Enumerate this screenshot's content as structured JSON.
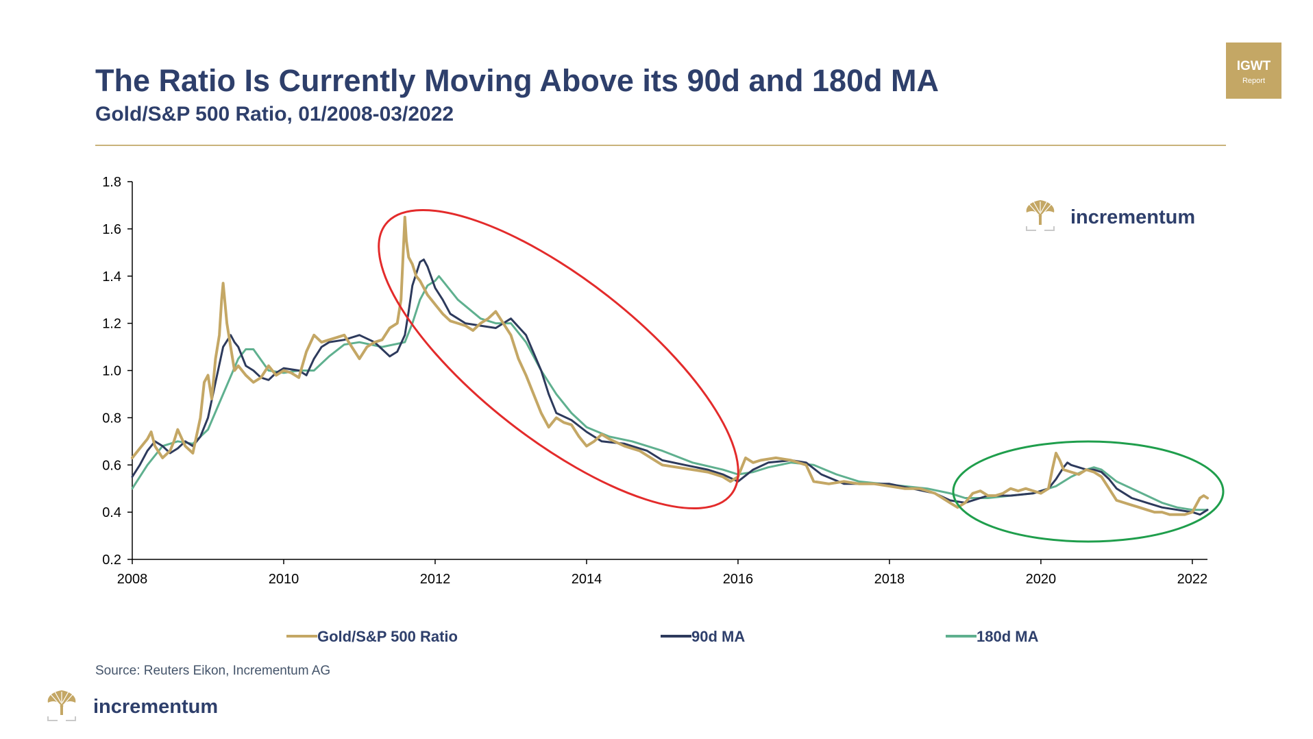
{
  "title": "The Ratio Is Currently Moving Above its 90d and 180d MA",
  "subtitle": "Gold/S&P 500 Ratio, 01/2008-03/2022",
  "badge": {
    "line1": "IGWT",
    "line2": "Report"
  },
  "logo": {
    "text": "incrementum"
  },
  "source": "Source: Reuters Eikon, Incrementum AG",
  "colors": {
    "title": "#2e3f6b",
    "ratio": "#c4a765",
    "ma90": "#2d3a5c",
    "ma180": "#5fb08f",
    "highlight_red": "#e32b2b",
    "highlight_green": "#1f9e4c",
    "gold": "#c4a765"
  },
  "chart_data": {
    "type": "line",
    "xlabel": "",
    "ylabel": "",
    "xlim": [
      2008,
      2022.2
    ],
    "ylim": [
      0.2,
      1.8
    ],
    "x_ticks": [
      {
        "value": 2008,
        "label": "2008"
      },
      {
        "value": 2010,
        "label": "2010"
      },
      {
        "value": 2012,
        "label": "2012"
      },
      {
        "value": 2014,
        "label": "2014"
      },
      {
        "value": 2016,
        "label": "2016"
      },
      {
        "value": 2018,
        "label": "2018"
      },
      {
        "value": 2020,
        "label": "2020"
      },
      {
        "value": 2022,
        "label": "2022"
      }
    ],
    "y_ticks": [
      {
        "value": 0.2,
        "label": "0.2"
      },
      {
        "value": 0.4,
        "label": "0.4"
      },
      {
        "value": 0.6,
        "label": "0.6"
      },
      {
        "value": 0.8,
        "label": "0.8"
      },
      {
        "value": 1.0,
        "label": "1.0"
      },
      {
        "value": 1.2,
        "label": "1.2"
      },
      {
        "value": 1.4,
        "label": "1.4"
      },
      {
        "value": 1.6,
        "label": "1.6"
      },
      {
        "value": 1.8,
        "label": "1.8"
      }
    ],
    "legend_position": "bottom",
    "series": [
      {
        "name": "Gold/S&P 500 Ratio",
        "color": "#c4a765",
        "x": [
          2008.0,
          2008.1,
          2008.2,
          2008.25,
          2008.3,
          2008.4,
          2008.5,
          2008.55,
          2008.6,
          2008.7,
          2008.8,
          2008.9,
          2008.95,
          2009.0,
          2009.05,
          2009.1,
          2009.15,
          2009.18,
          2009.2,
          2009.25,
          2009.3,
          2009.35,
          2009.4,
          2009.5,
          2009.6,
          2009.7,
          2009.8,
          2009.9,
          2010.0,
          2010.1,
          2010.2,
          2010.3,
          2010.4,
          2010.5,
          2010.6,
          2010.7,
          2010.8,
          2010.9,
          2011.0,
          2011.1,
          2011.2,
          2011.3,
          2011.4,
          2011.5,
          2011.55,
          2011.6,
          2011.62,
          2011.65,
          2011.7,
          2011.75,
          2011.8,
          2011.9,
          2012.0,
          2012.1,
          2012.2,
          2012.3,
          2012.4,
          2012.5,
          2012.6,
          2012.7,
          2012.8,
          2012.9,
          2013.0,
          2013.1,
          2013.2,
          2013.3,
          2013.4,
          2013.5,
          2013.6,
          2013.7,
          2013.8,
          2013.9,
          2014.0,
          2014.1,
          2014.2,
          2014.3,
          2014.5,
          2014.7,
          2014.9,
          2015.0,
          2015.2,
          2015.4,
          2015.6,
          2015.7,
          2015.8,
          2015.9,
          2016.0,
          2016.1,
          2016.2,
          2016.3,
          2016.5,
          2016.7,
          2016.9,
          2017.0,
          2017.2,
          2017.4,
          2017.6,
          2017.8,
          2018.0,
          2018.2,
          2018.4,
          2018.5,
          2018.6,
          2018.7,
          2018.8,
          2018.9,
          2019.0,
          2019.1,
          2019.2,
          2019.3,
          2019.4,
          2019.5,
          2019.6,
          2019.7,
          2019.8,
          2019.9,
          2020.0,
          2020.1,
          2020.15,
          2020.2,
          2020.25,
          2020.3,
          2020.4,
          2020.5,
          2020.6,
          2020.7,
          2020.8,
          2020.9,
          2021.0,
          2021.1,
          2021.2,
          2021.3,
          2021.4,
          2021.5,
          2021.6,
          2021.7,
          2021.8,
          2021.9,
          2022.0,
          2022.05,
          2022.1,
          2022.15,
          2022.2
        ],
        "values": [
          0.63,
          0.67,
          0.71,
          0.74,
          0.68,
          0.63,
          0.66,
          0.7,
          0.75,
          0.68,
          0.65,
          0.8,
          0.95,
          0.98,
          0.88,
          1.05,
          1.15,
          1.3,
          1.37,
          1.2,
          1.1,
          1.0,
          1.02,
          0.98,
          0.95,
          0.97,
          1.02,
          0.98,
          1.0,
          0.99,
          0.97,
          1.08,
          1.15,
          1.12,
          1.13,
          1.14,
          1.15,
          1.1,
          1.05,
          1.1,
          1.12,
          1.13,
          1.18,
          1.2,
          1.3,
          1.65,
          1.55,
          1.48,
          1.45,
          1.4,
          1.38,
          1.32,
          1.28,
          1.24,
          1.21,
          1.2,
          1.19,
          1.17,
          1.2,
          1.22,
          1.25,
          1.2,
          1.15,
          1.05,
          0.98,
          0.9,
          0.82,
          0.76,
          0.8,
          0.78,
          0.77,
          0.72,
          0.68,
          0.7,
          0.73,
          0.71,
          0.68,
          0.66,
          0.62,
          0.6,
          0.59,
          0.58,
          0.57,
          0.56,
          0.55,
          0.53,
          0.55,
          0.63,
          0.61,
          0.62,
          0.63,
          0.62,
          0.6,
          0.53,
          0.52,
          0.53,
          0.52,
          0.52,
          0.51,
          0.5,
          0.5,
          0.49,
          0.48,
          0.46,
          0.44,
          0.42,
          0.44,
          0.48,
          0.49,
          0.47,
          0.47,
          0.48,
          0.5,
          0.49,
          0.5,
          0.49,
          0.48,
          0.5,
          0.58,
          0.65,
          0.62,
          0.58,
          0.57,
          0.56,
          0.58,
          0.57,
          0.55,
          0.5,
          0.45,
          0.44,
          0.43,
          0.42,
          0.41,
          0.4,
          0.4,
          0.39,
          0.39,
          0.39,
          0.4,
          0.43,
          0.46,
          0.47,
          0.46
        ]
      },
      {
        "name": "90d MA",
        "color": "#2d3a5c",
        "x": [
          2008.0,
          2008.1,
          2008.2,
          2008.3,
          2008.4,
          2008.5,
          2008.6,
          2008.7,
          2008.8,
          2008.9,
          2009.0,
          2009.1,
          2009.2,
          2009.3,
          2009.35,
          2009.4,
          2009.5,
          2009.6,
          2009.7,
          2009.8,
          2009.9,
          2010.0,
          2010.2,
          2010.3,
          2010.4,
          2010.5,
          2010.6,
          2010.8,
          2011.0,
          2011.2,
          2011.4,
          2011.5,
          2011.6,
          2011.65,
          2011.7,
          2011.8,
          2011.85,
          2011.9,
          2012.0,
          2012.1,
          2012.2,
          2012.4,
          2012.6,
          2012.8,
          2012.9,
          2013.0,
          2013.2,
          2013.4,
          2013.5,
          2013.6,
          2013.8,
          2014.0,
          2014.2,
          2014.5,
          2014.8,
          2015.0,
          2015.3,
          2015.6,
          2015.8,
          2016.0,
          2016.2,
          2016.4,
          2016.7,
          2016.9,
          2017.1,
          2017.4,
          2017.7,
          2018.0,
          2018.3,
          2018.6,
          2018.8,
          2019.0,
          2019.3,
          2019.6,
          2019.9,
          2020.1,
          2020.2,
          2020.3,
          2020.35,
          2020.4,
          2020.6,
          2020.7,
          2020.8,
          2020.9,
          2021.0,
          2021.2,
          2021.4,
          2021.6,
          2021.8,
          2022.0,
          2022.1,
          2022.2
        ],
        "values": [
          0.55,
          0.6,
          0.66,
          0.7,
          0.68,
          0.65,
          0.67,
          0.7,
          0.68,
          0.72,
          0.8,
          0.95,
          1.1,
          1.15,
          1.12,
          1.1,
          1.02,
          1.0,
          0.97,
          0.96,
          0.99,
          1.01,
          1.0,
          0.98,
          1.05,
          1.1,
          1.12,
          1.13,
          1.15,
          1.12,
          1.06,
          1.08,
          1.15,
          1.25,
          1.36,
          1.46,
          1.47,
          1.44,
          1.35,
          1.3,
          1.24,
          1.2,
          1.19,
          1.18,
          1.2,
          1.22,
          1.15,
          1.0,
          0.9,
          0.82,
          0.79,
          0.74,
          0.7,
          0.69,
          0.66,
          0.62,
          0.6,
          0.58,
          0.56,
          0.53,
          0.58,
          0.61,
          0.62,
          0.61,
          0.56,
          0.52,
          0.52,
          0.52,
          0.5,
          0.48,
          0.45,
          0.44,
          0.47,
          0.47,
          0.48,
          0.5,
          0.54,
          0.59,
          0.61,
          0.6,
          0.58,
          0.58,
          0.57,
          0.54,
          0.5,
          0.46,
          0.44,
          0.42,
          0.41,
          0.4,
          0.39,
          0.41
        ]
      },
      {
        "name": "180d MA",
        "color": "#5fb08f",
        "x": [
          2008.0,
          2008.2,
          2008.4,
          2008.6,
          2008.8,
          2009.0,
          2009.2,
          2009.4,
          2009.5,
          2009.6,
          2009.8,
          2010.0,
          2010.2,
          2010.4,
          2010.6,
          2010.8,
          2011.0,
          2011.3,
          2011.6,
          2011.7,
          2011.8,
          2011.9,
          2012.0,
          2012.05,
          2012.1,
          2012.3,
          2012.6,
          2012.8,
          2013.0,
          2013.2,
          2013.4,
          2013.6,
          2013.8,
          2014.0,
          2014.3,
          2014.6,
          2015.0,
          2015.4,
          2015.8,
          2016.0,
          2016.2,
          2016.4,
          2016.7,
          2017.0,
          2017.3,
          2017.6,
          2017.9,
          2018.2,
          2018.5,
          2018.8,
          2019.0,
          2019.3,
          2019.6,
          2019.9,
          2020.2,
          2020.4,
          2020.6,
          2020.7,
          2020.8,
          2021.0,
          2021.2,
          2021.4,
          2021.6,
          2021.8,
          2022.0,
          2022.2
        ],
        "values": [
          0.5,
          0.6,
          0.68,
          0.7,
          0.69,
          0.75,
          0.9,
          1.05,
          1.09,
          1.09,
          1.0,
          0.99,
          1.0,
          1.0,
          1.06,
          1.11,
          1.12,
          1.1,
          1.12,
          1.2,
          1.3,
          1.36,
          1.38,
          1.4,
          1.38,
          1.3,
          1.22,
          1.2,
          1.2,
          1.12,
          1.0,
          0.9,
          0.82,
          0.76,
          0.72,
          0.7,
          0.66,
          0.61,
          0.58,
          0.56,
          0.57,
          0.59,
          0.61,
          0.6,
          0.56,
          0.53,
          0.52,
          0.51,
          0.5,
          0.48,
          0.46,
          0.46,
          0.47,
          0.48,
          0.51,
          0.55,
          0.58,
          0.59,
          0.58,
          0.53,
          0.5,
          0.47,
          0.44,
          0.42,
          0.41,
          0.41
        ]
      }
    ]
  }
}
